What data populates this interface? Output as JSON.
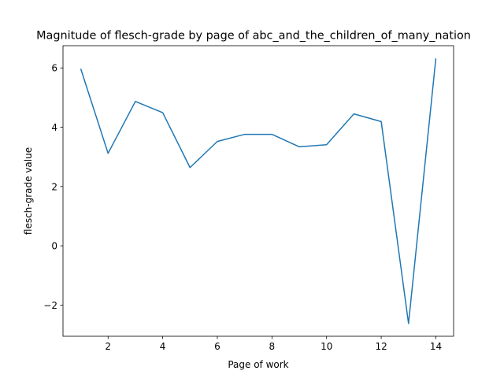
{
  "chart_data": {
    "type": "line",
    "title": "Magnitude of flesch-grade by page of abc_and_the_children_of_many_nation",
    "xlabel": "Page of work",
    "ylabel": "flesch-grade value",
    "x": [
      1,
      2,
      3,
      4,
      5,
      6,
      7,
      8,
      9,
      10,
      11,
      12,
      13,
      14
    ],
    "series": [
      {
        "values": [
          5.97,
          3.12,
          4.87,
          4.49,
          2.64,
          3.52,
          3.76,
          3.76,
          3.34,
          3.41,
          4.45,
          4.19,
          -2.62,
          6.32
        ],
        "color": "#1f77b4"
      }
    ],
    "xlim": [
      0.35,
      14.65
    ],
    "ylim": [
      -3.05,
      6.75
    ],
    "xticks": [
      2,
      4,
      6,
      8,
      10,
      12,
      14
    ],
    "yticks": [
      -2,
      0,
      2,
      4,
      6
    ],
    "xtick_labels": [
      "2",
      "4",
      "6",
      "8",
      "10",
      "12",
      "14"
    ],
    "ytick_labels": [
      "−2",
      "0",
      "2",
      "4",
      "6"
    ],
    "grid": false,
    "legend": "none"
  }
}
